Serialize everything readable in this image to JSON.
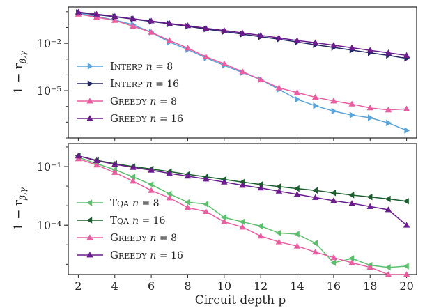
{
  "figure": {
    "xlabel": "Circuit depth p"
  },
  "chart_data": [
    {
      "type": "line",
      "ylabel": "1 − r_β,γ",
      "yscale": "log",
      "x": [
        2,
        3,
        4,
        5,
        6,
        7,
        8,
        9,
        10,
        11,
        12,
        13,
        14,
        15,
        16,
        17,
        18,
        19,
        20
      ],
      "xlim": [
        1.45,
        20.55
      ],
      "ylim": [
        1e-08,
        2
      ],
      "xticks": [
        2,
        4,
        6,
        8,
        10,
        12,
        14,
        16,
        18,
        20
      ],
      "yticks": [
        {
          "value": 0.01,
          "label": "10⁻²"
        },
        {
          "value": 1e-05,
          "label": "10⁻⁵"
        }
      ],
      "legend_position": "lower-left",
      "series": [
        {
          "name": "Interp n = 8",
          "color": "#5aa3d8",
          "marker": "triangle-right",
          "values": [
            0.8,
            0.5,
            0.3,
            0.15,
            0.05,
            0.012,
            0.004,
            0.0012,
            0.0004,
            0.00014,
            5e-05,
            1.2e-05,
            2.8e-06,
            1.1e-06,
            5e-07,
            2.8e-07,
            1.9e-07,
            9e-08,
            3e-08
          ]
        },
        {
          "name": "Interp n = 16",
          "color": "#232765",
          "marker": "triangle-right",
          "values": [
            0.9,
            0.65,
            0.48,
            0.34,
            0.24,
            0.17,
            0.12,
            0.08,
            0.055,
            0.038,
            0.026,
            0.018,
            0.012,
            0.008,
            0.0055,
            0.0037,
            0.0025,
            0.0017,
            0.0011
          ]
        },
        {
          "name": "Greedy n = 8",
          "color": "#e85ea0",
          "marker": "triangle-up",
          "values": [
            0.7,
            0.45,
            0.28,
            0.12,
            0.05,
            0.015,
            0.005,
            0.0014,
            0.0005,
            0.00016,
            5e-05,
            1.5e-05,
            7.5e-06,
            3.8e-06,
            2.2e-06,
            1.4e-06,
            8e-07,
            6e-07,
            7e-07
          ]
        },
        {
          "name": "Greedy n = 16",
          "color": "#6a1c8c",
          "marker": "triangle-up",
          "values": [
            0.95,
            0.7,
            0.5,
            0.36,
            0.26,
            0.18,
            0.13,
            0.09,
            0.065,
            0.045,
            0.032,
            0.022,
            0.015,
            0.011,
            0.0075,
            0.0052,
            0.0036,
            0.0025,
            0.0017
          ]
        }
      ]
    },
    {
      "type": "line",
      "ylabel": "1 − r_β,γ",
      "yscale": "log",
      "x": [
        2,
        3,
        4,
        5,
        6,
        7,
        8,
        9,
        10,
        11,
        12,
        13,
        14,
        15,
        16,
        17,
        18,
        19,
        20
      ],
      "xlim": [
        1.45,
        20.55
      ],
      "ylim": [
        3e-07,
        1.5
      ],
      "xticks": [
        2,
        4,
        6,
        8,
        10,
        12,
        14,
        16,
        18,
        20
      ],
      "yticks": [
        {
          "value": 0.1,
          "label": "10⁻¹"
        },
        {
          "value": 0.0001,
          "label": "10⁻⁴"
        }
      ],
      "legend_position": "lower-left",
      "series": [
        {
          "name": "Tqa n = 8",
          "color": "#5dbf6e",
          "marker": "triangle-left",
          "values": [
            0.3,
            0.14,
            0.07,
            0.03,
            0.012,
            0.004,
            0.0015,
            0.0012,
            0.00025,
            0.00015,
            9e-05,
            4e-05,
            3.5e-05,
            1.2e-05,
            1.2e-06,
            2e-06,
            9e-07,
            7e-07,
            8e-07
          ]
        },
        {
          "name": "Tqa n = 16",
          "color": "#1b5e2e",
          "marker": "triangle-left",
          "values": [
            0.35,
            0.21,
            0.14,
            0.1,
            0.075,
            0.055,
            0.04,
            0.03,
            0.022,
            0.016,
            0.012,
            0.0095,
            0.0075,
            0.006,
            0.0045,
            0.0035,
            0.0028,
            0.0022,
            0.0017
          ]
        },
        {
          "name": "Greedy n = 8",
          "color": "#e85ea0",
          "marker": "triangle-up",
          "values": [
            0.25,
            0.12,
            0.05,
            0.018,
            0.006,
            0.0025,
            0.0008,
            0.0005,
            0.00015,
            8e-05,
            2.8e-05,
            1.4e-05,
            8.5e-06,
            4.2e-06,
            2.2e-06,
            1.2e-06,
            7e-07,
            3e-07,
            3e-07
          ]
        },
        {
          "name": "Greedy n = 16",
          "color": "#6a1c8c",
          "marker": "triangle-up",
          "values": [
            0.35,
            0.2,
            0.13,
            0.09,
            0.065,
            0.045,
            0.032,
            0.023,
            0.016,
            0.011,
            0.008,
            0.0055,
            0.0038,
            0.0026,
            0.0018,
            0.0013,
            0.0009,
            0.00062,
            0.0001
          ]
        }
      ]
    }
  ]
}
